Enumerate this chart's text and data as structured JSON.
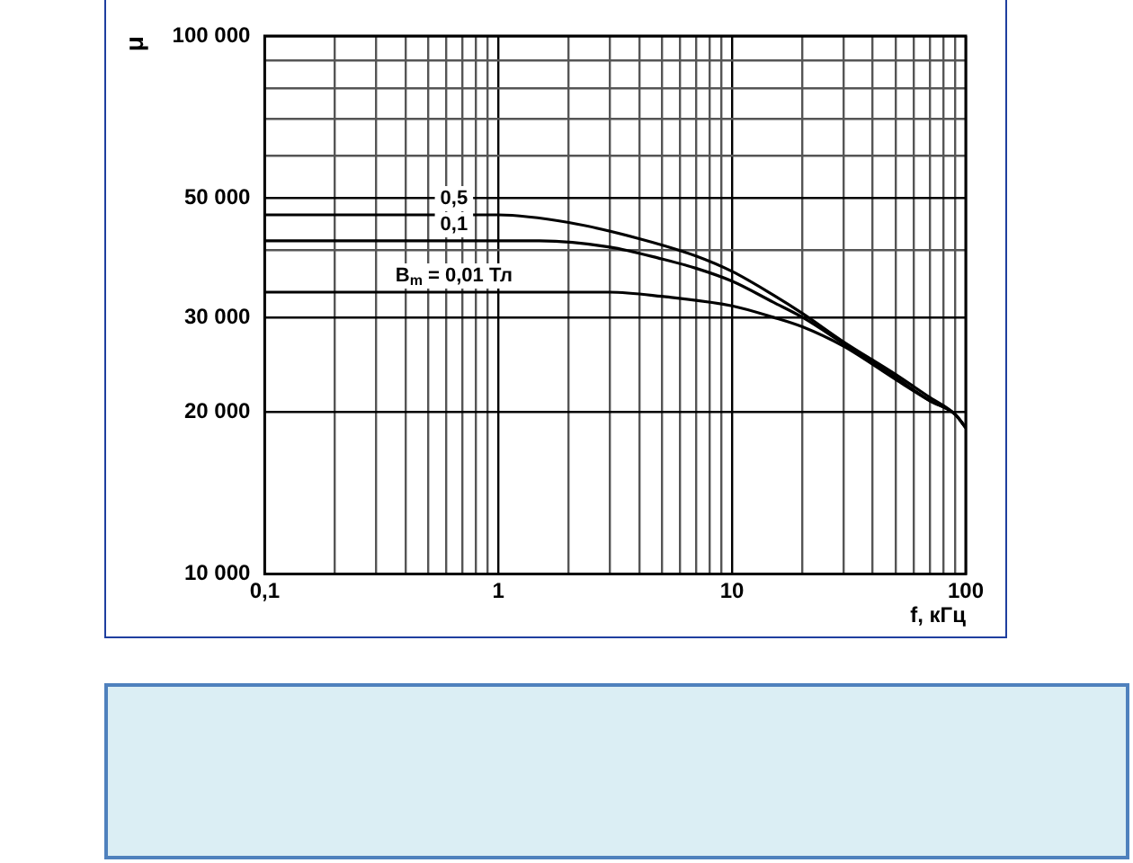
{
  "chart_data": {
    "type": "line",
    "xlabel": "f, кГц",
    "ylabel": "μ",
    "log": "xy",
    "grid": true,
    "legend": false,
    "marker": "none",
    "line_style": "solid",
    "xlim": [
      0.1,
      100
    ],
    "xticks": [
      {
        "value": 0.1,
        "label": "0,1"
      },
      {
        "value": 0.2,
        "label": null
      },
      {
        "value": 0.3,
        "label": null
      },
      {
        "value": 0.4,
        "label": null
      },
      {
        "value": 0.5,
        "label": null
      },
      {
        "value": 0.6,
        "label": null
      },
      {
        "value": 0.7,
        "label": null
      },
      {
        "value": 0.8,
        "label": null
      },
      {
        "value": 0.9,
        "label": null
      },
      {
        "value": 1,
        "label": "1"
      },
      {
        "value": 2,
        "label": null
      },
      {
        "value": 3,
        "label": null
      },
      {
        "value": 4,
        "label": null
      },
      {
        "value": 5,
        "label": null
      },
      {
        "value": 6,
        "label": null
      },
      {
        "value": 7,
        "label": null
      },
      {
        "value": 8,
        "label": null
      },
      {
        "value": 9,
        "label": null
      },
      {
        "value": 10,
        "label": "10"
      },
      {
        "value": 20,
        "label": null
      },
      {
        "value": 30,
        "label": null
      },
      {
        "value": 40,
        "label": null
      },
      {
        "value": 50,
        "label": null
      },
      {
        "value": 60,
        "label": null
      },
      {
        "value": 70,
        "label": null
      },
      {
        "value": 80,
        "label": null
      },
      {
        "value": 90,
        "label": null
      },
      {
        "value": 100,
        "label": "100"
      }
    ],
    "ylim": [
      10000,
      100000
    ],
    "yticks": [
      {
        "value": 10000,
        "label": "10 000"
      },
      {
        "value": 20000,
        "label": "20 000"
      },
      {
        "value": 30000,
        "label": "30 000"
      },
      {
        "value": 40000,
        "label": null
      },
      {
        "value": 50000,
        "label": "50 000"
      },
      {
        "value": 60000,
        "label": null
      },
      {
        "value": 70000,
        "label": null
      },
      {
        "value": 80000,
        "label": null
      },
      {
        "value": 90000,
        "label": null
      },
      {
        "value": 100000,
        "label": "100 000"
      }
    ],
    "series": [
      {
        "name": "0,5",
        "color": "#000000",
        "x": [
          0.1,
          1,
          2,
          4,
          7,
          10,
          15,
          20,
          30,
          50,
          70,
          90,
          100
        ],
        "values": [
          46500,
          46500,
          45000,
          42000,
          39000,
          36500,
          33000,
          30500,
          27000,
          23500,
          21300,
          19800,
          18700
        ]
      },
      {
        "name": "0,1",
        "color": "#000000",
        "x": [
          0.1,
          1.5,
          3,
          5,
          7,
          10,
          15,
          20,
          30,
          50,
          70,
          90,
          100
        ],
        "values": [
          41600,
          41600,
          40500,
          38500,
          37000,
          35000,
          32000,
          30000,
          26800,
          23200,
          21000,
          19800,
          18700
        ]
      },
      {
        "name": "B$_{m}$ = 0,01 Тл",
        "color": "#000000",
        "x": [
          0.1,
          3,
          5,
          10,
          15,
          20,
          30,
          50,
          70,
          90,
          100
        ],
        "values": [
          33400,
          33400,
          32800,
          31500,
          30000,
          28800,
          26500,
          23000,
          21000,
          19800,
          18700
        ]
      }
    ]
  }
}
